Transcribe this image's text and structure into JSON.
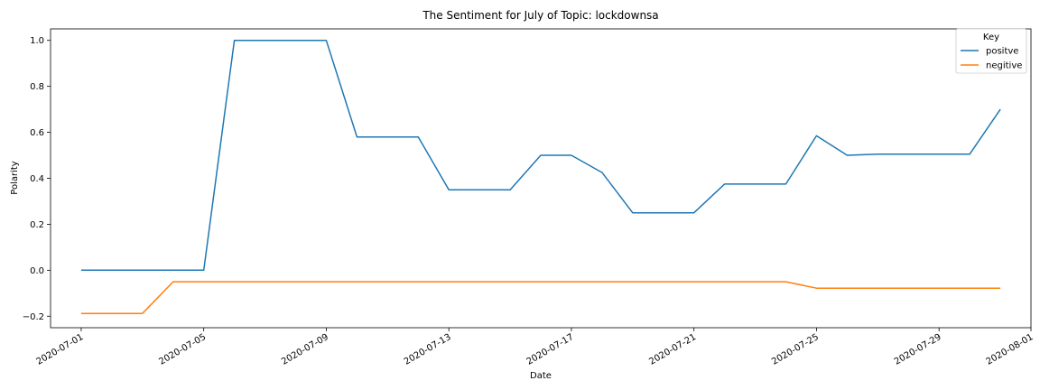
{
  "chart_data": {
    "type": "line",
    "title": "The Sentiment for July of Topic: lockdownsa",
    "xlabel": "Date",
    "ylabel": "Polarity",
    "x": [
      "2020-07-01",
      "2020-07-02",
      "2020-07-03",
      "2020-07-04",
      "2020-07-05",
      "2020-07-06",
      "2020-07-07",
      "2020-07-08",
      "2020-07-09",
      "2020-07-10",
      "2020-07-11",
      "2020-07-12",
      "2020-07-13",
      "2020-07-14",
      "2020-07-15",
      "2020-07-16",
      "2020-07-17",
      "2020-07-18",
      "2020-07-19",
      "2020-07-20",
      "2020-07-21",
      "2020-07-22",
      "2020-07-23",
      "2020-07-24",
      "2020-07-25",
      "2020-07-26",
      "2020-07-27",
      "2020-07-28",
      "2020-07-29",
      "2020-07-30",
      "2020-07-31"
    ],
    "series": [
      {
        "name": "positve",
        "color": "#1f77b4",
        "values": [
          0,
          0,
          0,
          0,
          0,
          1.0,
          1.0,
          1.0,
          1.0,
          0.58,
          0.58,
          0.58,
          0.35,
          0.35,
          0.35,
          0.5,
          0.5,
          0.425,
          0.25,
          0.25,
          0.25,
          0.375,
          0.375,
          0.375,
          0.585,
          0.5,
          0.505,
          0.505,
          0.505,
          0.505,
          0.7
        ]
      },
      {
        "name": "negitive",
        "color": "#ff7f0e",
        "values": [
          -0.188,
          -0.188,
          -0.188,
          -0.05,
          -0.05,
          -0.05,
          -0.05,
          -0.05,
          -0.05,
          -0.05,
          -0.05,
          -0.05,
          -0.05,
          -0.05,
          -0.05,
          -0.05,
          -0.05,
          -0.05,
          -0.05,
          -0.05,
          -0.05,
          -0.05,
          -0.05,
          -0.05,
          -0.078,
          -0.078,
          -0.078,
          -0.078,
          -0.078,
          -0.078,
          -0.078
        ]
      }
    ],
    "xlim": [
      "2020-06-30",
      "2020-08-01"
    ],
    "ylim": [
      -0.25,
      1.05
    ],
    "yticks": [
      -0.2,
      0.0,
      0.2,
      0.4,
      0.6,
      0.8,
      1.0
    ],
    "ytick_labels": [
      "−0.2",
      "0.0",
      "0.2",
      "0.4",
      "0.6",
      "0.8",
      "1.0"
    ],
    "xticks": [
      "2020-07-01",
      "2020-07-05",
      "2020-07-09",
      "2020-07-13",
      "2020-07-17",
      "2020-07-21",
      "2020-07-25",
      "2020-07-29",
      "2020-08-01"
    ],
    "legend": {
      "title": "Key",
      "placement": "top-right"
    },
    "grid": false
  }
}
